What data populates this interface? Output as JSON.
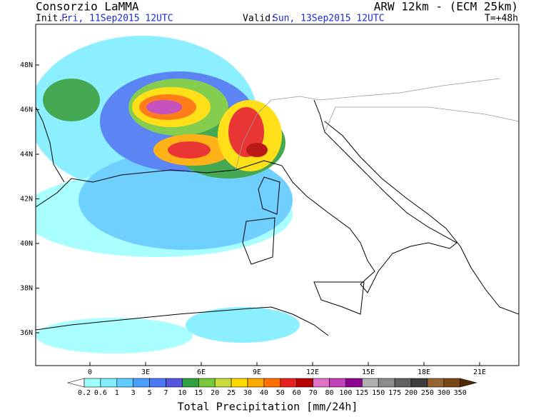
{
  "header": {
    "left_title": "Consorzio LaMMA",
    "right_title": "ARW 12km - (ECM 25km)",
    "init_label": "Init.:",
    "init_value": "Fri, 11Sep2015 12UTC",
    "valid_label": "Valid:",
    "valid_value": "Sun, 13Sep2015 12UTC",
    "step": "T=+48h"
  },
  "axes": {
    "lat_labels": [
      "48N",
      "46N",
      "44N",
      "42N",
      "40N",
      "38N",
      "36N"
    ],
    "lon_labels": [
      "0",
      "3E",
      "6E",
      "9E",
      "12E",
      "15E",
      "18E",
      "21E"
    ]
  },
  "colorbar": {
    "title": "Total Precipitation [mm/24h]",
    "labels": [
      "0.2",
      "0.6",
      "1",
      "3",
      "5",
      "7",
      "10",
      "15",
      "20",
      "25",
      "30",
      "40",
      "50",
      "60",
      "70",
      "80",
      "100",
      "125",
      "150",
      "175",
      "200",
      "250",
      "300",
      "350"
    ],
    "colors": [
      "#ffffff",
      "#a0ffff",
      "#80eeff",
      "#60ccff",
      "#4aa0ff",
      "#4a78f5",
      "#5555e0",
      "#30a040",
      "#78c83c",
      "#c8dc3c",
      "#ffdc00",
      "#ffaa00",
      "#ff7000",
      "#e82020",
      "#b40000",
      "#e070c8",
      "#c040b8",
      "#900090",
      "#b0b0b0",
      "#8c8c8c",
      "#606060",
      "#3c3c3c",
      "#966432",
      "#784614",
      "#502800"
    ]
  }
}
